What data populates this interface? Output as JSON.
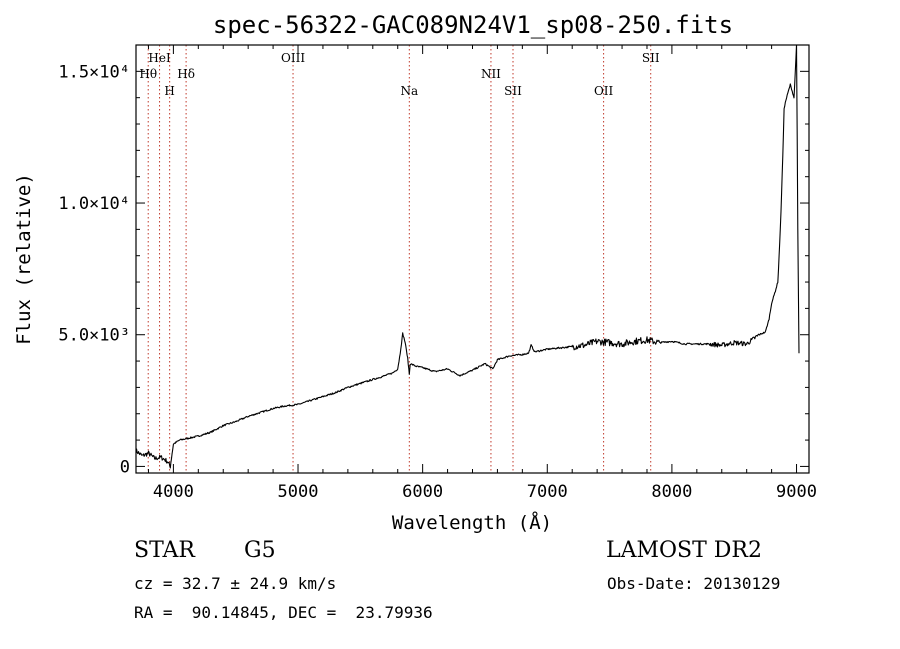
{
  "chart_data": {
    "type": "line",
    "title": "spec-56322-GAC089N24V1_sp08-250.fits",
    "xlabel": "Wavelength (Å)",
    "ylabel": "Flux (relative)",
    "xlim": [
      3700,
      9100
    ],
    "ylim": [
      -250,
      16000
    ],
    "xticks": [
      {
        "value": 4000,
        "label": "4000"
      },
      {
        "value": 5000,
        "label": "5000"
      },
      {
        "value": 6000,
        "label": "6000"
      },
      {
        "value": 7000,
        "label": "7000"
      },
      {
        "value": 8000,
        "label": "8000"
      },
      {
        "value": 9000,
        "label": "9000"
      }
    ],
    "yticks": [
      {
        "value": 0,
        "label": "0"
      },
      {
        "value": 5000,
        "label": "5.0×10³"
      },
      {
        "value": 10000,
        "label": "1.0×10⁴"
      },
      {
        "value": 15000,
        "label": "1.5×10⁴"
      }
    ],
    "lines": [
      {
        "name": "Hθ",
        "x": 3798,
        "row": 1
      },
      {
        "name": "HeI",
        "x": 3889,
        "row": 0
      },
      {
        "name": "H",
        "x": 3970,
        "row": 2
      },
      {
        "name": "Hδ",
        "x": 4102,
        "row": 1
      },
      {
        "name": "OIII",
        "x": 4960,
        "row": 0
      },
      {
        "name": "Na",
        "x": 5893,
        "row": 2
      },
      {
        "name": "NII",
        "x": 6548,
        "row": 1
      },
      {
        "name": "SII",
        "x": 6725,
        "row": 2
      },
      {
        "name": "OII",
        "x": 7452,
        "row": 2
      },
      {
        "name": "SII",
        "x": 7830,
        "row": 0
      }
    ],
    "spectrum": {
      "x": [
        3700,
        3750,
        3800,
        3850,
        3900,
        3950,
        3975,
        4000,
        4050,
        4100,
        4200,
        4300,
        4400,
        4500,
        4600,
        4700,
        4800,
        4900,
        5000,
        5100,
        5200,
        5300,
        5400,
        5500,
        5600,
        5700,
        5760,
        5800,
        5820,
        5840,
        5860,
        5880,
        5893,
        5900,
        5950,
        6000,
        6100,
        6200,
        6300,
        6400,
        6500,
        6563,
        6600,
        6700,
        6800,
        6850,
        6870,
        6900,
        7000,
        7100,
        7200,
        7300,
        7400,
        7500,
        7600,
        7700,
        7800,
        7900,
        8000,
        8100,
        8200,
        8300,
        8400,
        8500,
        8600,
        8700,
        8750,
        8780,
        8800,
        8820,
        8850,
        8870,
        8890,
        8900,
        8920,
        8950,
        8980,
        9000,
        9010,
        9020
      ],
      "y": [
        600,
        400,
        500,
        300,
        350,
        200,
        0,
        850,
        1000,
        1050,
        1150,
        1300,
        1550,
        1700,
        1900,
        2050,
        2200,
        2300,
        2350,
        2500,
        2650,
        2800,
        3000,
        3150,
        3300,
        3450,
        3550,
        3700,
        4300,
        5050,
        4700,
        4100,
        3500,
        3900,
        3800,
        3750,
        3600,
        3700,
        3450,
        3650,
        3900,
        3700,
        4050,
        4200,
        4250,
        4300,
        4600,
        4350,
        4450,
        4500,
        4550,
        4600,
        4750,
        4700,
        4650,
        4750,
        4800,
        4700,
        4750,
        4650,
        4650,
        4650,
        4600,
        4700,
        4650,
        5000,
        5100,
        5600,
        6200,
        6500,
        7000,
        9000,
        11800,
        13600,
        14000,
        14500,
        14000,
        16000,
        9000,
        4300
      ]
    }
  },
  "info": {
    "class": "STAR",
    "subclass": "G5",
    "cz": "cz = 32.7 ± 24.9 km/s",
    "radec": "RA =  90.14845, DEC =  23.79936",
    "survey": "LAMOST DR2",
    "obsdate": "Obs-Date: 20130129"
  }
}
